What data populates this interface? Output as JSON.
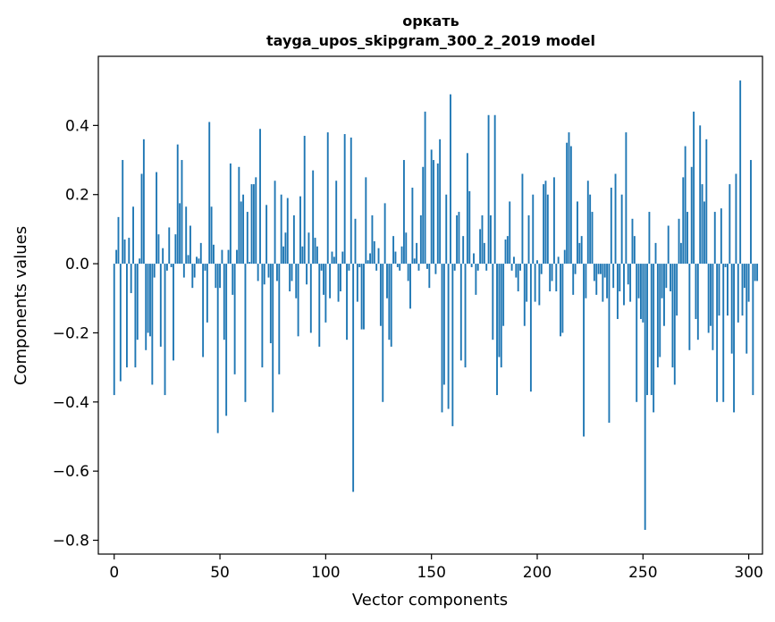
{
  "chart_data": {
    "type": "bar",
    "title": "оркать",
    "subtitle": "tayga_upos_skipgram_300_2_2019 model",
    "xlabel": "Vector components",
    "ylabel": "Components values",
    "xlim": [
      -7.5,
      306.5
    ],
    "ylim": [
      -0.84,
      0.6
    ],
    "xticks": [
      0,
      50,
      100,
      150,
      200,
      250,
      300
    ],
    "xtick_labels": [
      "0",
      "50",
      "100",
      "150",
      "200",
      "250",
      "300"
    ],
    "yticks": [
      -0.8,
      -0.6,
      -0.4,
      -0.2,
      0.0,
      0.2,
      0.4
    ],
    "ytick_labels": [
      "−0.8",
      "−0.6",
      "−0.4",
      "−0.2",
      "0.0",
      "0.2",
      "0.4"
    ],
    "bar_color": "#1f77b4",
    "values": [
      -0.38,
      0.04,
      0.135,
      -0.34,
      0.3,
      0.07,
      -0.3,
      0.075,
      -0.085,
      0.165,
      -0.3,
      -0.22,
      0.015,
      0.26,
      0.36,
      -0.25,
      -0.2,
      -0.21,
      -0.35,
      -0.04,
      0.265,
      0.085,
      -0.24,
      0.045,
      -0.38,
      -0.02,
      0.105,
      -0.01,
      -0.28,
      0.085,
      0.345,
      0.175,
      0.3,
      -0.04,
      0.165,
      0.025,
      0.11,
      -0.07,
      -0.04,
      0.02,
      0.015,
      0.06,
      -0.27,
      -0.02,
      -0.17,
      0.41,
      0.165,
      0.055,
      -0.07,
      -0.49,
      -0.07,
      0.04,
      -0.22,
      -0.44,
      0.04,
      0.29,
      -0.09,
      -0.32,
      0.04,
      0.28,
      0.18,
      0.2,
      -0.4,
      0.15,
      0.005,
      0.23,
      0.23,
      0.25,
      -0.05,
      0.39,
      -0.3,
      -0.06,
      0.17,
      -0.04,
      -0.23,
      -0.43,
      0.24,
      -0.05,
      -0.32,
      0.2,
      0.05,
      0.09,
      0.19,
      -0.08,
      -0.05,
      0.14,
      -0.1,
      -0.21,
      0.195,
      0.05,
      0.37,
      -0.06,
      0.09,
      -0.2,
      0.27,
      0.075,
      0.05,
      -0.24,
      -0.02,
      -0.09,
      -0.17,
      0.38,
      -0.1,
      0.035,
      0.02,
      0.24,
      -0.11,
      -0.08,
      0.035,
      0.375,
      -0.22,
      -0.02,
      0.365,
      -0.66,
      0.13,
      -0.11,
      -0.01,
      -0.19,
      -0.19,
      0.25,
      0.01,
      0.03,
      0.14,
      0.065,
      -0.02,
      0.045,
      -0.18,
      -0.4,
      0.175,
      -0.1,
      -0.22,
      -0.24,
      0.08,
      0.035,
      -0.01,
      -0.02,
      0.05,
      0.3,
      0.09,
      -0.05,
      -0.13,
      0.22,
      0.015,
      0.06,
      -0.02,
      0.14,
      0.28,
      0.44,
      -0.015,
      -0.07,
      0.33,
      0.3,
      -0.03,
      0.29,
      0.36,
      -0.43,
      -0.35,
      0.2,
      -0.42,
      0.49,
      -0.47,
      -0.02,
      0.14,
      0.15,
      -0.28,
      0.08,
      -0.3,
      0.32,
      0.21,
      -0.01,
      0.03,
      -0.09,
      -0.02,
      0.1,
      0.14,
      0.06,
      -0.02,
      0.43,
      0.14,
      -0.22,
      0.43,
      -0.38,
      -0.27,
      -0.3,
      -0.18,
      0.07,
      0.08,
      0.18,
      -0.02,
      0.02,
      -0.04,
      -0.08,
      -0.02,
      0.26,
      -0.18,
      -0.11,
      0.14,
      -0.37,
      0.2,
      -0.11,
      0.01,
      -0.12,
      -0.03,
      0.23,
      0.24,
      0.2,
      -0.08,
      -0.05,
      0.25,
      -0.08,
      0.02,
      -0.21,
      -0.2,
      0.04,
      0.35,
      0.38,
      0.34,
      -0.09,
      -0.03,
      0.18,
      0.06,
      0.08,
      -0.5,
      -0.1,
      0.24,
      0.2,
      0.15,
      -0.05,
      -0.09,
      -0.03,
      -0.03,
      -0.11,
      -0.04,
      -0.1,
      -0.46,
      0.22,
      -0.07,
      0.26,
      -0.16,
      -0.08,
      0.2,
      -0.12,
      0.38,
      -0.06,
      -0.11,
      0.13,
      0.08,
      -0.4,
      -0.1,
      -0.16,
      -0.17,
      -0.77,
      -0.38,
      0.15,
      -0.38,
      -0.43,
      0.06,
      -0.3,
      -0.27,
      -0.1,
      -0.18,
      -0.07,
      0.11,
      -0.08,
      -0.3,
      -0.35,
      -0.15,
      0.13,
      0.06,
      0.25,
      0.34,
      0.15,
      -0.25,
      0.28,
      0.44,
      -0.16,
      -0.22,
      0.4,
      0.23,
      0.18,
      0.36,
      -0.2,
      -0.18,
      -0.25,
      0.15,
      -0.4,
      -0.15,
      0.16,
      -0.4,
      -0.01,
      -0.15,
      0.23,
      -0.26,
      -0.43,
      0.26,
      -0.17,
      0.53,
      -0.15,
      -0.07,
      -0.26,
      -0.11,
      0.3,
      -0.38,
      -0.05,
      -0.05
    ]
  }
}
